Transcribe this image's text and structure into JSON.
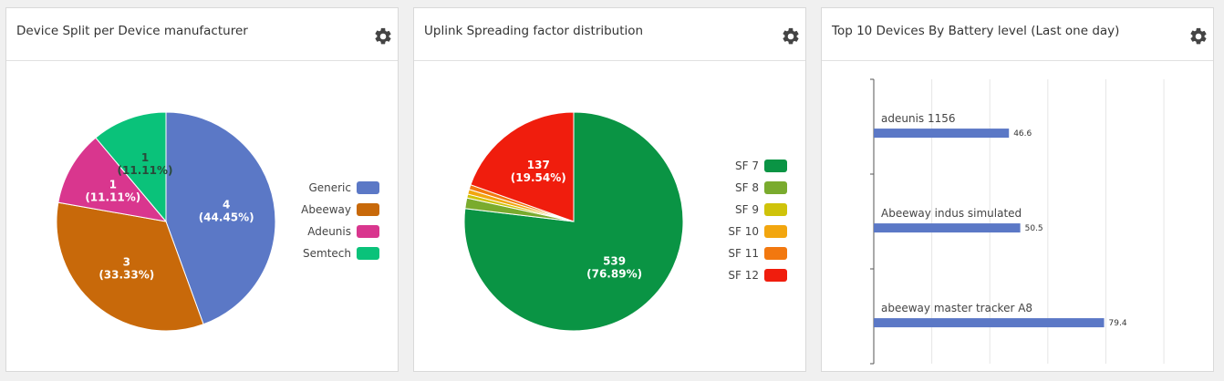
{
  "panels": [
    {
      "title": "Device Split per Device manufacturer"
    },
    {
      "title": "Uplink Spreading factor distribution"
    },
    {
      "title": "Top 10 Devices By Battery level (Last one day)"
    }
  ],
  "chart_data": [
    {
      "type": "pie",
      "title": "Device Split per Device manufacturer",
      "categories": [
        "Generic",
        "Abeeway",
        "Adeunis",
        "Semtech"
      ],
      "values": [
        4,
        3,
        1,
        1
      ],
      "percent_labels": [
        "(44.45%)",
        "(33.33%)",
        "(11.11%)",
        "(11.11%)"
      ],
      "colors": [
        "#5b78c6",
        "#c8690a",
        "#d9368e",
        "#0ac27a"
      ],
      "legend": "right"
    },
    {
      "type": "pie",
      "title": "Uplink Spreading factor distribution",
      "categories": [
        "SF 7",
        "SF 8",
        "SF 9",
        "SF 10",
        "SF 11",
        "SF 12"
      ],
      "values": [
        539,
        11,
        4,
        5,
        5,
        137
      ],
      "percent_labels": [
        "(76.89%)",
        "",
        "",
        "",
        "",
        "(19.54%)"
      ],
      "colors": [
        "#0a9444",
        "#7aab2e",
        "#cfc30a",
        "#f2a60f",
        "#f2780f",
        "#f01d0d"
      ],
      "legend": "right"
    },
    {
      "type": "bar",
      "orientation": "horizontal",
      "title": "Top 10 Devices By Battery level (Last one day)",
      "categories": [
        "adeunis 1156",
        "Abeeway indus simulated",
        "abeeway master tracker A8"
      ],
      "values": [
        46.6,
        50.5,
        79.4
      ],
      "value_labels": [
        "46.6",
        "50.5",
        "79.4"
      ],
      "xlim": [
        0,
        100
      ],
      "color": "#5b78c6",
      "grid": true
    }
  ]
}
